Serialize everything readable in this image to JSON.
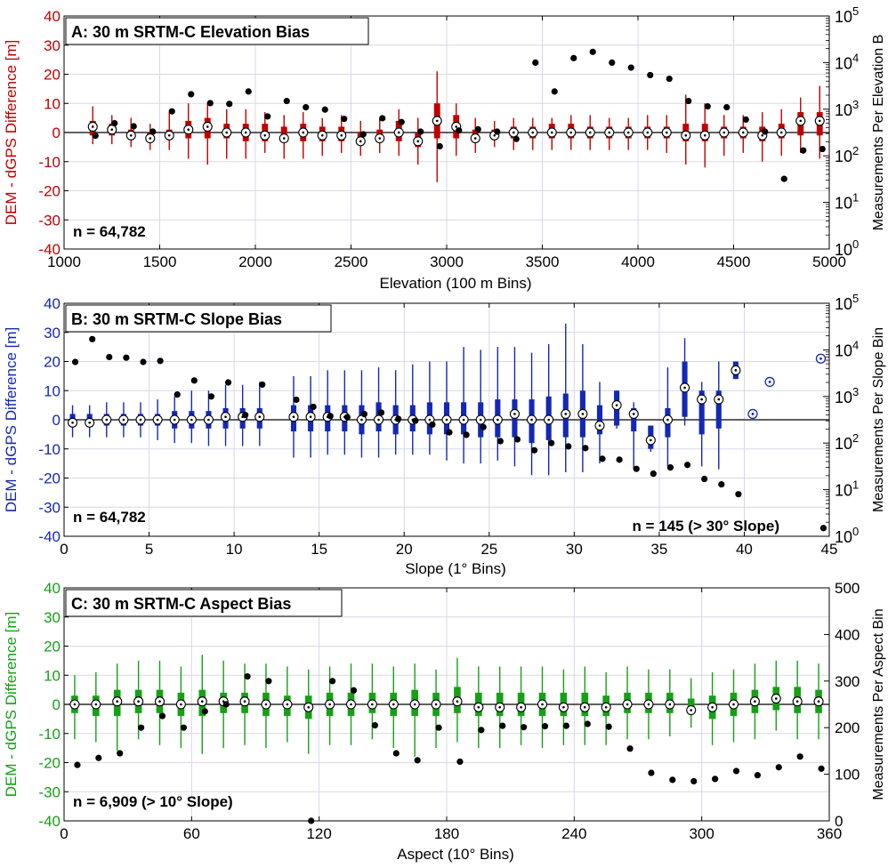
{
  "colors": {
    "A": "#c00000",
    "B": "#1428b4",
    "C": "#16a016",
    "axis": "#000000",
    "grid": "#d8d8e8",
    "count": "#000000"
  },
  "chart_data": [
    {
      "id": "A",
      "type": "box",
      "title": "A: 30 m SRTM-C Elevation Bias",
      "xlabel": "Elevation (100 m Bins)",
      "ylabel": "DEM - dGPS Difference [m]",
      "y2label": "Measurements Per Elevation B",
      "note": "n = 64,782",
      "xlim": [
        1000,
        5000
      ],
      "xticks": [
        1000,
        1500,
        2000,
        2500,
        3000,
        3500,
        4000,
        4500,
        5000
      ],
      "ylim": [
        -40,
        40
      ],
      "yticks": [
        -40,
        -30,
        -20,
        -10,
        0,
        10,
        20,
        30,
        40
      ],
      "y2scale": "log",
      "y2lim": [
        1,
        100000
      ],
      "y2ticks": [
        "10^0",
        "10^1",
        "10^2",
        "10^3",
        "10^4",
        "10^5"
      ],
      "grid": true,
      "series": [
        {
          "kind": "box",
          "x": [
            1150,
            1250,
            1350,
            1450,
            1550,
            1650,
            1750,
            1850,
            1950,
            2050,
            2150,
            2250,
            2350,
            2450,
            2550,
            2650,
            2750,
            2850,
            2950,
            3050,
            3150,
            3250,
            3350,
            3450,
            3550,
            3650,
            3750,
            3850,
            3950,
            4050,
            4150,
            4250,
            4350,
            4450,
            4550,
            4650,
            4750,
            4850,
            4950
          ],
          "median": [
            2,
            1,
            -1,
            -2,
            -1,
            1,
            2,
            0,
            0,
            -1,
            -2,
            0,
            -1,
            -1,
            -3,
            -2,
            0,
            -3,
            4,
            2,
            -2,
            -1,
            0,
            0,
            0,
            0,
            0,
            0,
            0,
            0,
            0,
            -1,
            -1,
            0,
            0,
            -1,
            0,
            4,
            4
          ],
          "q1": [
            -1,
            -1,
            -2,
            -3,
            -2,
            -2,
            -2,
            -2,
            -3,
            -3,
            -3,
            -3,
            -3,
            -3,
            -4,
            -3,
            -3,
            -5,
            -2,
            -2,
            -3,
            -2,
            -2,
            -2,
            -2,
            -2,
            -2,
            -2,
            -2,
            -2,
            -2,
            -3,
            -3,
            -2,
            -2,
            -3,
            -2,
            -1,
            -1
          ],
          "q3": [
            4,
            3,
            1,
            0,
            1,
            4,
            5,
            3,
            3,
            3,
            2,
            3,
            2,
            2,
            0,
            1,
            4,
            0,
            10,
            6,
            1,
            1,
            2,
            2,
            3,
            3,
            2,
            2,
            2,
            2,
            2,
            3,
            3,
            2,
            2,
            2,
            3,
            7,
            7
          ],
          "wlo": [
            -4,
            -4,
            -5,
            -6,
            -6,
            -9,
            -11,
            -9,
            -9,
            -7,
            -9,
            -9,
            -8,
            -7,
            -8,
            -7,
            -8,
            -11,
            -17,
            -8,
            -7,
            -5,
            -6,
            -6,
            -6,
            -6,
            -6,
            -6,
            -6,
            -6,
            -7,
            -11,
            -12,
            -8,
            -7,
            -10,
            -8,
            -7,
            -9
          ],
          "whi": [
            9,
            6,
            5,
            3,
            7,
            10,
            10,
            8,
            8,
            7,
            6,
            7,
            5,
            6,
            4,
            5,
            8,
            5,
            21,
            10,
            5,
            4,
            5,
            5,
            5,
            6,
            6,
            5,
            5,
            6,
            6,
            13,
            10,
            6,
            6,
            7,
            8,
            12,
            16
          ]
        },
        {
          "kind": "count",
          "axis": "y2",
          "x": [
            1150,
            1250,
            1350,
            1450,
            1550,
            1650,
            1750,
            1850,
            1950,
            2050,
            2150,
            2250,
            2350,
            2450,
            2550,
            2650,
            2750,
            2850,
            2950,
            3050,
            3150,
            3250,
            3350,
            3450,
            3550,
            3650,
            3750,
            3850,
            3950,
            4050,
            4150,
            4250,
            4350,
            4450,
            4550,
            4650,
            4750,
            4850,
            4950
          ],
          "values": [
            270,
            500,
            430,
            330,
            900,
            2100,
            1350,
            1300,
            2400,
            700,
            1500,
            1100,
            980,
            620,
            290,
            640,
            530,
            330,
            160,
            350,
            370,
            330,
            230,
            10000,
            2400,
            12500,
            17000,
            10000,
            7800,
            5400,
            4500,
            1500,
            1150,
            1100,
            600,
            330,
            32,
            130,
            140
          ]
        }
      ]
    },
    {
      "id": "B",
      "type": "box",
      "title": "B: 30 m SRTM-C Slope Bias",
      "xlabel": "Slope (1° Bins)",
      "ylabel": "DEM - dGPS Difference [m]",
      "y2label": "Measurements Per Slope Bin",
      "note": "n = 64,782",
      "note2": "n = 145 (> 30° Slope)",
      "xlim": [
        0,
        45
      ],
      "xticks": [
        0,
        5,
        10,
        15,
        20,
        25,
        30,
        35,
        40,
        45
      ],
      "ylim": [
        -40,
        40
      ],
      "yticks": [
        -40,
        -30,
        -20,
        -10,
        0,
        10,
        20,
        30,
        40
      ],
      "y2scale": "log",
      "y2lim": [
        1,
        100000
      ],
      "y2ticks": [
        "10^0",
        "10^1",
        "10^2",
        "10^3",
        "10^4",
        "10^5"
      ],
      "grid": true,
      "series": [
        {
          "kind": "box",
          "x": [
            0.5,
            1.5,
            2.5,
            3.5,
            4.5,
            5.5,
            6.5,
            7.5,
            8.5,
            9.5,
            10.5,
            11.5,
            13.5,
            14.5,
            15.5,
            16.5,
            17.5,
            18.5,
            19.5,
            20.5,
            21.5,
            22.5,
            23.5,
            24.5,
            25.5,
            26.5,
            27.5,
            28.5,
            29.5,
            30.5,
            31.5,
            32.5,
            33.5,
            34.5,
            35.5,
            36.5,
            37.5,
            38.5,
            39.5
          ],
          "median": [
            -1,
            -1,
            0,
            0,
            0,
            0,
            0,
            0,
            0,
            1,
            1,
            1,
            1,
            1,
            1,
            1,
            0,
            0,
            0,
            0,
            0,
            0,
            0,
            0,
            0,
            2,
            0,
            0,
            2,
            2,
            -2,
            5,
            2,
            -7,
            0,
            11,
            7,
            7,
            17
          ],
          "q1": [
            -2,
            -2,
            -2,
            -2,
            -2,
            -2,
            -3,
            -3,
            -3,
            -3,
            -3,
            -3,
            -4,
            -4,
            -4,
            -4,
            -5,
            -4,
            -5,
            -4,
            -5,
            -5,
            -5,
            -6,
            -6,
            -6,
            -8,
            -7,
            -6,
            -6,
            -5,
            -2,
            -4,
            -10,
            -6,
            1,
            -5,
            -3,
            14
          ],
          "q3": [
            2,
            2,
            2,
            2,
            2,
            2,
            3,
            3,
            3,
            4,
            4,
            4,
            5,
            5,
            5,
            5,
            5,
            6,
            5,
            5,
            6,
            6,
            6,
            6,
            7,
            7,
            7,
            8,
            9,
            10,
            5,
            10,
            4,
            -2,
            4,
            20,
            10,
            10,
            20
          ],
          "wlo": [
            -6,
            -6,
            -6,
            -6,
            -6,
            -7,
            -8,
            -8,
            -9,
            -9,
            -9,
            -9,
            -13,
            -13,
            -12,
            -12,
            -13,
            -13,
            -12,
            -12,
            -12,
            -14,
            -15,
            -15,
            -14,
            -16,
            -19,
            -19,
            -18,
            -18,
            -15,
            -3,
            -17,
            -11,
            -16,
            -2,
            -16,
            -17,
            14
          ],
          "whi": [
            5,
            5,
            6,
            6,
            6,
            7,
            8,
            10,
            10,
            12,
            12,
            13,
            15,
            15,
            17,
            17,
            17,
            18,
            17,
            19,
            20,
            20,
            25,
            24,
            25,
            25,
            23,
            26,
            33,
            26,
            13,
            10,
            6,
            -2,
            18,
            28,
            13,
            20,
            20
          ]
        },
        {
          "kind": "single",
          "x": [
            40.5,
            41.5,
            44.5
          ],
          "values": [
            2,
            13,
            21
          ]
        },
        {
          "kind": "count",
          "axis": "y2",
          "x": [
            0.5,
            1.5,
            2.5,
            3.5,
            4.5,
            5.5,
            6.5,
            7.5,
            8.5,
            9.5,
            10.5,
            11.5,
            13.5,
            14.5,
            15.5,
            16.5,
            17.5,
            18.5,
            19.5,
            20.5,
            21.5,
            22.5,
            23.5,
            24.5,
            25.5,
            26.5,
            27.5,
            28.5,
            29.5,
            30.5,
            31.5,
            32.5,
            33.5,
            34.5,
            35.5,
            36.5,
            37.5,
            38.5,
            39.5,
            44.5
          ],
          "values": [
            5500,
            17000,
            7000,
            6800,
            5500,
            5800,
            1100,
            2200,
            1000,
            2000,
            400,
            1800,
            850,
            600,
            380,
            360,
            420,
            450,
            330,
            300,
            250,
            170,
            150,
            220,
            110,
            120,
            70,
            100,
            85,
            78,
            46,
            44,
            28,
            22,
            30,
            34,
            17,
            13,
            8,
            1.5
          ]
        }
      ]
    },
    {
      "id": "C",
      "type": "box",
      "title": "C: 30 m SRTM-C Aspect Bias",
      "xlabel": "Aspect (10° Bins)",
      "ylabel": "DEM - dGPS Difference [m]",
      "y2label": "Measurements Per Aspect Bin",
      "note": "n = 6,909 (> 10° Slope)",
      "xlim": [
        0,
        360
      ],
      "xticks": [
        0,
        60,
        120,
        180,
        240,
        300,
        360
      ],
      "ylim": [
        -40,
        40
      ],
      "yticks": [
        -40,
        -30,
        -20,
        -10,
        0,
        10,
        20,
        30,
        40
      ],
      "y2scale": "linear",
      "y2lim": [
        0,
        500
      ],
      "y2ticks": [
        "0",
        "100",
        "200",
        "300",
        "400",
        "500"
      ],
      "grid": true,
      "series": [
        {
          "kind": "box",
          "x": [
            5,
            15,
            25,
            35,
            45,
            55,
            65,
            75,
            85,
            95,
            105,
            115,
            125,
            135,
            145,
            155,
            165,
            175,
            185,
            195,
            205,
            215,
            225,
            235,
            245,
            255,
            265,
            275,
            285,
            295,
            305,
            315,
            325,
            335,
            345,
            355
          ],
          "median": [
            0,
            0,
            1,
            1,
            1,
            0,
            1,
            1,
            1,
            0,
            0,
            -1,
            0,
            0,
            0,
            0,
            0,
            0,
            1,
            -1,
            -1,
            -1,
            0,
            -1,
            -1,
            -1,
            0,
            0,
            0,
            -2,
            -1,
            0,
            1,
            2,
            1,
            1
          ],
          "q1": [
            -3,
            -4,
            -4,
            -3,
            -3,
            -4,
            -4,
            -3,
            -3,
            -4,
            -4,
            -5,
            -4,
            -4,
            -3,
            -4,
            -4,
            -4,
            -3,
            -4,
            -4,
            -4,
            -4,
            -4,
            -4,
            -4,
            -3,
            -3,
            -3,
            -3,
            -5,
            -4,
            -3,
            -2,
            -3,
            -3
          ],
          "q3": [
            3,
            3,
            5,
            5,
            5,
            4,
            5,
            4,
            4,
            4,
            3,
            3,
            4,
            4,
            4,
            4,
            5,
            4,
            6,
            4,
            4,
            4,
            4,
            4,
            4,
            3,
            4,
            4,
            4,
            2,
            3,
            4,
            5,
            6,
            6,
            5
          ],
          "wlo": [
            -12,
            -13,
            -16,
            -12,
            -14,
            -15,
            -17,
            -15,
            -14,
            -15,
            -13,
            -17,
            -14,
            -14,
            -12,
            -15,
            -18,
            -15,
            -13,
            -15,
            -15,
            -14,
            -15,
            -14,
            -14,
            -14,
            -12,
            -12,
            -11,
            -8,
            -14,
            -13,
            -12,
            -9,
            -12,
            -12
          ],
          "whi": [
            10,
            11,
            14,
            15,
            15,
            13,
            17,
            15,
            14,
            14,
            13,
            12,
            13,
            14,
            14,
            13,
            14,
            12,
            16,
            13,
            13,
            13,
            13,
            12,
            13,
            11,
            13,
            12,
            12,
            9,
            11,
            12,
            14,
            15,
            15,
            14
          ]
        },
        {
          "kind": "count",
          "axis": "y2",
          "x": [
            5,
            15,
            25,
            35,
            45,
            55,
            65,
            75,
            85,
            95,
            105,
            115,
            125,
            135,
            145,
            155,
            165,
            175,
            185,
            195,
            205,
            215,
            225,
            235,
            245,
            255,
            265,
            275,
            285,
            295,
            305,
            315,
            325,
            335,
            345,
            355
          ],
          "values": [
            120,
            135,
            145,
            200,
            225,
            200,
            235,
            250,
            310,
            300,
            480,
            0,
            300,
            280,
            205,
            145,
            130,
            200,
            127,
            195,
            204,
            201,
            203,
            204,
            208,
            202,
            155,
            103,
            88,
            85,
            90,
            107,
            98,
            115,
            138,
            112
          ]
        }
      ]
    }
  ]
}
